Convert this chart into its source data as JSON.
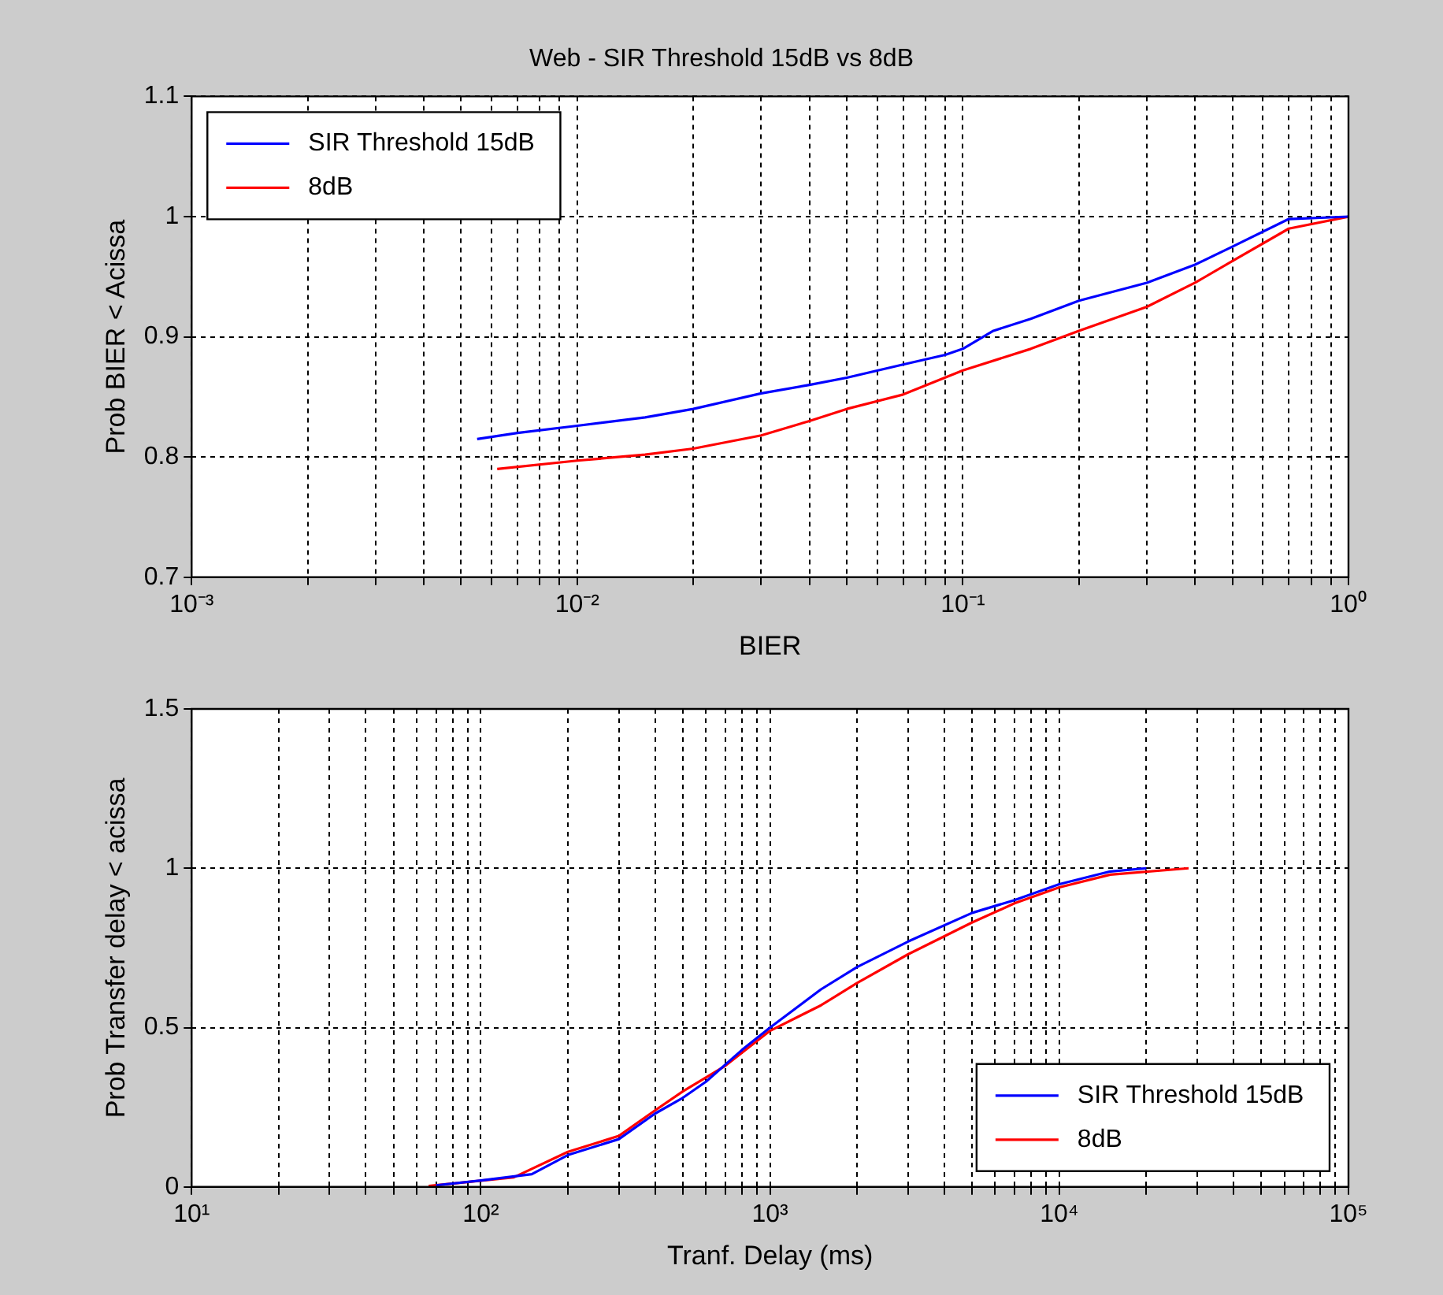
{
  "chart_data": [
    {
      "type": "line",
      "title": "Web - SIR Threshold 15dB vs 8dB",
      "xlabel": "BIER",
      "ylabel": "Prob BIER < Acissa",
      "log": "x",
      "grid": true,
      "legend": "top left",
      "xlim": [
        0.001,
        1
      ],
      "ylim": [
        0.7,
        1.1
      ],
      "xticks": [
        {
          "value": 0.001,
          "label": "10⁻³"
        },
        {
          "value": 0.002,
          "label": null
        },
        {
          "value": 0.003,
          "label": null
        },
        {
          "value": 0.004,
          "label": null
        },
        {
          "value": 0.005,
          "label": null
        },
        {
          "value": 0.006,
          "label": null
        },
        {
          "value": 0.007,
          "label": null
        },
        {
          "value": 0.008,
          "label": null
        },
        {
          "value": 0.009,
          "label": null
        },
        {
          "value": 0.01,
          "label": "10⁻²"
        },
        {
          "value": 0.02,
          "label": null
        },
        {
          "value": 0.03,
          "label": null
        },
        {
          "value": 0.04,
          "label": null
        },
        {
          "value": 0.05,
          "label": null
        },
        {
          "value": 0.06,
          "label": null
        },
        {
          "value": 0.07,
          "label": null
        },
        {
          "value": 0.08,
          "label": null
        },
        {
          "value": 0.09,
          "label": null
        },
        {
          "value": 0.1,
          "label": "10⁻¹"
        },
        {
          "value": 0.2,
          "label": null
        },
        {
          "value": 0.3,
          "label": null
        },
        {
          "value": 0.4,
          "label": null
        },
        {
          "value": 0.5,
          "label": null
        },
        {
          "value": 0.6,
          "label": null
        },
        {
          "value": 0.7,
          "label": null
        },
        {
          "value": 0.8,
          "label": null
        },
        {
          "value": 0.9,
          "label": null
        },
        {
          "value": 1,
          "label": "10⁰"
        }
      ],
      "yticks": [
        0.7,
        0.8,
        0.9,
        1,
        1.1
      ],
      "series": [
        {
          "name": "SIR Threshold 15dB",
          "color": "#0000ff",
          "x": [
            0.0055,
            0.007,
            0.01,
            0.015,
            0.02,
            0.03,
            0.04,
            0.05,
            0.07,
            0.09,
            0.1,
            0.12,
            0.15,
            0.2,
            0.3,
            0.4,
            0.5,
            0.7,
            1
          ],
          "values": [
            0.815,
            0.82,
            0.826,
            0.833,
            0.84,
            0.853,
            0.86,
            0.866,
            0.877,
            0.885,
            0.89,
            0.905,
            0.915,
            0.93,
            0.945,
            0.96,
            0.975,
            0.998,
            1
          ]
        },
        {
          "name": "8dB",
          "color": "#ff0000",
          "x": [
            0.0062,
            0.01,
            0.015,
            0.02,
            0.03,
            0.04,
            0.05,
            0.07,
            0.1,
            0.15,
            0.2,
            0.3,
            0.4,
            0.5,
            0.7,
            1
          ],
          "values": [
            0.79,
            0.797,
            0.802,
            0.807,
            0.818,
            0.83,
            0.84,
            0.852,
            0.872,
            0.89,
            0.905,
            0.925,
            0.945,
            0.963,
            0.99,
            1
          ]
        }
      ]
    },
    {
      "type": "line",
      "xlabel": "Tranf. Delay (ms)",
      "ylabel": "Prob Transfer delay < acissa",
      "log": "x",
      "grid": true,
      "legend": "bottom right",
      "xlim": [
        10,
        100000
      ],
      "ylim": [
        0,
        1.5
      ],
      "xticks": [
        {
          "value": 10,
          "label": "10¹"
        },
        {
          "value": 20,
          "label": null
        },
        {
          "value": 30,
          "label": null
        },
        {
          "value": 40,
          "label": null
        },
        {
          "value": 50,
          "label": null
        },
        {
          "value": 60,
          "label": null
        },
        {
          "value": 70,
          "label": null
        },
        {
          "value": 80,
          "label": null
        },
        {
          "value": 90,
          "label": null
        },
        {
          "value": 100,
          "label": "10²"
        },
        {
          "value": 200,
          "label": null
        },
        {
          "value": 300,
          "label": null
        },
        {
          "value": 400,
          "label": null
        },
        {
          "value": 500,
          "label": null
        },
        {
          "value": 600,
          "label": null
        },
        {
          "value": 700,
          "label": null
        },
        {
          "value": 800,
          "label": null
        },
        {
          "value": 900,
          "label": null
        },
        {
          "value": 1000,
          "label": "10³"
        },
        {
          "value": 2000,
          "label": null
        },
        {
          "value": 3000,
          "label": null
        },
        {
          "value": 4000,
          "label": null
        },
        {
          "value": 5000,
          "label": null
        },
        {
          "value": 6000,
          "label": null
        },
        {
          "value": 7000,
          "label": null
        },
        {
          "value": 8000,
          "label": null
        },
        {
          "value": 9000,
          "label": null
        },
        {
          "value": 10000,
          "label": "10⁴"
        },
        {
          "value": 20000,
          "label": null
        },
        {
          "value": 30000,
          "label": null
        },
        {
          "value": 40000,
          "label": null
        },
        {
          "value": 50000,
          "label": null
        },
        {
          "value": 60000,
          "label": null
        },
        {
          "value": 70000,
          "label": null
        },
        {
          "value": 80000,
          "label": null
        },
        {
          "value": 90000,
          "label": null
        },
        {
          "value": 100000,
          "label": "10⁵"
        }
      ],
      "yticks": [
        0,
        0.5,
        1,
        1.5
      ],
      "series": [
        {
          "name": "SIR Threshold 15dB",
          "color": "#0000ff",
          "x": [
            70,
            100,
            150,
            200,
            300,
            400,
            500,
            600,
            800,
            1000,
            1500,
            2000,
            3000,
            5000,
            7000,
            10000,
            15000,
            20000
          ],
          "values": [
            0.005,
            0.02,
            0.04,
            0.1,
            0.15,
            0.23,
            0.28,
            0.33,
            0.43,
            0.5,
            0.62,
            0.69,
            0.77,
            0.86,
            0.9,
            0.95,
            0.99,
            1
          ]
        },
        {
          "name": "8dB",
          "color": "#ff0000",
          "x": [
            66,
            130,
            200,
            300,
            400,
            500,
            700,
            1000,
            1500,
            2000,
            3000,
            5000,
            7000,
            10000,
            15000,
            28000
          ],
          "values": [
            0.003,
            0.03,
            0.11,
            0.16,
            0.24,
            0.3,
            0.38,
            0.49,
            0.57,
            0.64,
            0.73,
            0.83,
            0.89,
            0.94,
            0.98,
            1
          ]
        }
      ]
    }
  ]
}
